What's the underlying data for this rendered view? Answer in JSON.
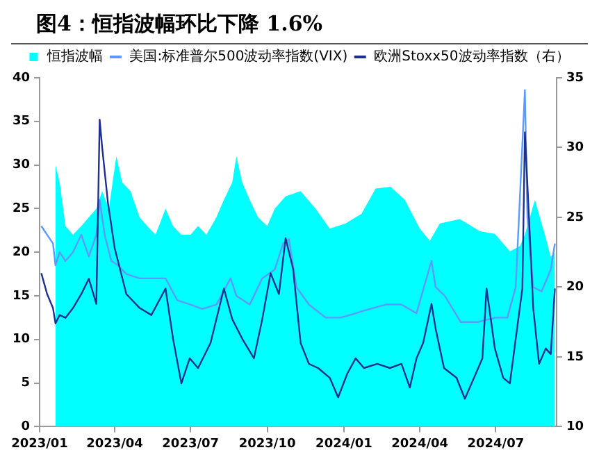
{
  "chart_data": {
    "type": "line",
    "title": "图4：恒指波幅环比下降 1.6%",
    "xlim": [
      "2023-01-01",
      "2024-09-12"
    ],
    "xticks": [
      {
        "value": "2023-01-01",
        "label": "2023/01"
      },
      {
        "value": "2023-04-01",
        "label": "2023/04"
      },
      {
        "value": "2023-07-01",
        "label": "2023/07"
      },
      {
        "value": "2023-10-01",
        "label": "2023/10"
      },
      {
        "value": "2024-01-01",
        "label": "2024/01"
      },
      {
        "value": "2024-04-01",
        "label": "2024/04"
      },
      {
        "value": "2024-07-01",
        "label": "2024/07"
      }
    ],
    "ylim": [
      0,
      40
    ],
    "yticks": [
      0,
      5,
      10,
      15,
      20,
      25,
      30,
      35,
      40
    ],
    "y2lim": [
      10,
      35
    ],
    "y2ticks": [
      10,
      15,
      20,
      25,
      30,
      35
    ],
    "grid": false,
    "legend": "top",
    "marker": "none",
    "series": [
      {
        "name": "恒指波幅",
        "type": "area",
        "color": "#00ffff",
        "x": [
          "2023-01-20",
          "2023-01-25",
          "2023-02-01",
          "2023-02-10",
          "2023-02-20",
          "2023-03-01",
          "2023-03-10",
          "2023-03-17",
          "2023-03-25",
          "2023-04-03",
          "2023-04-10",
          "2023-04-20",
          "2023-05-01",
          "2023-05-10",
          "2023-05-20",
          "2023-06-01",
          "2023-06-10",
          "2023-06-20",
          "2023-07-01",
          "2023-07-10",
          "2023-07-20",
          "2023-08-01",
          "2023-08-10",
          "2023-08-20",
          "2023-08-25",
          "2023-09-01",
          "2023-09-10",
          "2023-09-20",
          "2023-10-01",
          "2023-10-10",
          "2023-10-23",
          "2023-11-10",
          "2023-11-28",
          "2023-12-15",
          "2024-01-03",
          "2024-01-22",
          "2024-02-08",
          "2024-02-26",
          "2024-03-14",
          "2024-04-01",
          "2024-04-13",
          "2024-04-25",
          "2024-05-19",
          "2024-06-12",
          "2024-06-30",
          "2024-07-18",
          "2024-07-30",
          "2024-08-05",
          "2024-08-17",
          "2024-08-29",
          "2024-09-05",
          "2024-09-10"
        ],
        "values": [
          30,
          28,
          23,
          22,
          23,
          24,
          25,
          27,
          25,
          31,
          28,
          27,
          24,
          23,
          22,
          25,
          23,
          22,
          22,
          23,
          22,
          24,
          26,
          28,
          31,
          28,
          26,
          24,
          23,
          25,
          26.4,
          27,
          25,
          22.7,
          23.3,
          24.4,
          27.3,
          27.5,
          26,
          22.7,
          21.3,
          23.3,
          23.8,
          22.4,
          22.1,
          20.1,
          20.7,
          22,
          26,
          22,
          19.5,
          20
        ]
      },
      {
        "name": "美国:标准普尔500波动率指数(VIX)",
        "type": "line",
        "color": "#5b9bff",
        "x": [
          "2023-01-03",
          "2023-01-10",
          "2023-01-17",
          "2023-01-20",
          "2023-01-25",
          "2023-02-01",
          "2023-02-10",
          "2023-02-20",
          "2023-03-01",
          "2023-03-10",
          "2023-03-14",
          "2023-03-20",
          "2023-03-28",
          "2023-04-05",
          "2023-04-15",
          "2023-05-01",
          "2023-05-15",
          "2023-06-01",
          "2023-06-15",
          "2023-07-01",
          "2023-07-15",
          "2023-08-01",
          "2023-08-18",
          "2023-08-25",
          "2023-09-10",
          "2023-09-25",
          "2023-10-10",
          "2023-10-20",
          "2023-10-27",
          "2023-11-05",
          "2023-11-20",
          "2023-12-10",
          "2023-12-28",
          "2024-01-15",
          "2024-02-01",
          "2024-02-20",
          "2024-03-10",
          "2024-03-28",
          "2024-04-15",
          "2024-04-20",
          "2024-05-01",
          "2024-05-20",
          "2024-06-10",
          "2024-07-01",
          "2024-07-15",
          "2024-07-25",
          "2024-08-05",
          "2024-08-08",
          "2024-08-15",
          "2024-08-25",
          "2024-09-05",
          "2024-09-10"
        ],
        "values": [
          23,
          22,
          21,
          18.5,
          20,
          19,
          20,
          22,
          19.5,
          22,
          26,
          22,
          19,
          18.5,
          17.5,
          17,
          17,
          17,
          14.5,
          14,
          13.5,
          14,
          17,
          15,
          14,
          17,
          18,
          21,
          21.5,
          16,
          14,
          12.5,
          12.5,
          13,
          13.5,
          14,
          14,
          13,
          19,
          16,
          15,
          12,
          12,
          12.5,
          12.5,
          16,
          38.6,
          24,
          16,
          15.5,
          18,
          21
        ]
      },
      {
        "name": "欧洲Stoxx50波动率指数（右）",
        "type": "line",
        "axis": "y2",
        "color": "#1f2f8f",
        "x": [
          "2023-01-03",
          "2023-01-10",
          "2023-01-17",
          "2023-01-20",
          "2023-01-25",
          "2023-02-01",
          "2023-02-10",
          "2023-02-20",
          "2023-03-01",
          "2023-03-10",
          "2023-03-14",
          "2023-03-17",
          "2023-03-24",
          "2023-04-01",
          "2023-04-15",
          "2023-05-01",
          "2023-05-15",
          "2023-06-01",
          "2023-06-10",
          "2023-06-20",
          "2023-06-30",
          "2023-07-10",
          "2023-07-25",
          "2023-08-10",
          "2023-08-20",
          "2023-09-01",
          "2023-09-15",
          "2023-09-25",
          "2023-10-05",
          "2023-10-15",
          "2023-10-23",
          "2023-11-01",
          "2023-11-10",
          "2023-11-20",
          "2023-12-01",
          "2023-12-15",
          "2023-12-25",
          "2024-01-05",
          "2024-01-15",
          "2024-01-25",
          "2024-02-10",
          "2024-02-25",
          "2024-03-10",
          "2024-03-20",
          "2024-03-28",
          "2024-04-05",
          "2024-04-15",
          "2024-04-20",
          "2024-04-30",
          "2024-05-15",
          "2024-05-25",
          "2024-06-05",
          "2024-06-15",
          "2024-06-20",
          "2024-06-30",
          "2024-07-10",
          "2024-07-18",
          "2024-07-25",
          "2024-08-02",
          "2024-08-05",
          "2024-08-08",
          "2024-08-15",
          "2024-08-22",
          "2024-08-30",
          "2024-09-05",
          "2024-09-10"
        ],
        "values": [
          21,
          19.5,
          18.5,
          17.4,
          18,
          17.8,
          18.5,
          19.5,
          20.6,
          18.8,
          32,
          30,
          26,
          22.8,
          19.5,
          18.5,
          18,
          19.9,
          16.3,
          13.1,
          14.9,
          14.2,
          16,
          19.9,
          17.7,
          16.3,
          14.9,
          17.7,
          21,
          19.5,
          23.5,
          21.3,
          16,
          14.5,
          14.2,
          13.5,
          12.1,
          13.8,
          14.9,
          14.2,
          14.5,
          14.2,
          14.5,
          12.8,
          14.9,
          16,
          18.8,
          17,
          14.2,
          13.5,
          12,
          13.5,
          14.9,
          19.9,
          15.6,
          13.5,
          13.1,
          16.3,
          19.9,
          31.1,
          27.4,
          18.5,
          14.5,
          15.6,
          15.2,
          19.9
        ]
      }
    ]
  }
}
